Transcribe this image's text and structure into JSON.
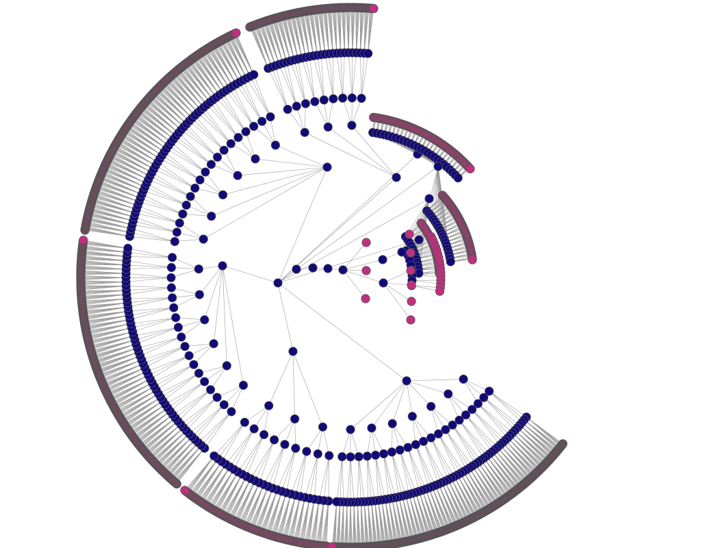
{
  "diagram": {
    "type": "radial-tree-network",
    "colors": {
      "internal_node": "#120a78",
      "leaf_node": "#c0307f",
      "edge": "#9a9a9a",
      "node_outline": "#555555",
      "background": "#ffffff"
    },
    "structure": {
      "main_tree_groups": 5,
      "inner_cluster_leaves": 8,
      "upper_right_cluster_rows": 3
    }
  }
}
